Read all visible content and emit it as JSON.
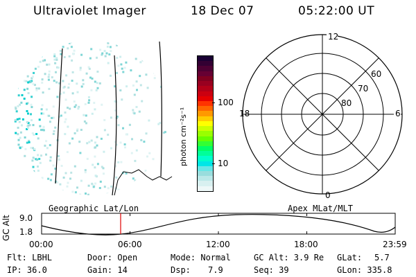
{
  "header": {
    "title": "Ultraviolet Imager",
    "date": "18 Dec 07",
    "time": "05:22:00 UT"
  },
  "colorbar": {
    "unit_label": "photon cm⁻²s⁻¹",
    "ticks": [
      "100",
      "10"
    ],
    "colors": [
      "#1a0033",
      "#330033",
      "#4d0033",
      "#660033",
      "#800020",
      "#990020",
      "#b30018",
      "#cc0010",
      "#e60000",
      "#ff3300",
      "#ff6600",
      "#ff9900",
      "#ffcc00",
      "#ffff00",
      "#ccff00",
      "#99ff00",
      "#66ff00",
      "#33ff33",
      "#00ff66",
      "#00ff99",
      "#00ffcc",
      "#00e6e6",
      "#66e6e6",
      "#99dddd",
      "#bbe8e8",
      "#d8f0f0",
      "#eef8f8"
    ]
  },
  "map_left": {
    "caption": "Geographic Lat/Lon"
  },
  "map_right": {
    "caption": "Apex MLat/MLT",
    "mlt_labels": {
      "top": "12",
      "left": "18",
      "right": "6",
      "bottom": "0"
    },
    "mlat_labels": [
      "60",
      "70",
      "80"
    ]
  },
  "timeline": {
    "axis_label": "GC Alt",
    "y_max": "9.0",
    "y_min": "1.8",
    "time_ticks": [
      "00:00",
      "06:00",
      "12:00",
      "18:00",
      "23:59"
    ],
    "current_time_fraction": 0.2236
  },
  "status": {
    "filter": "Flt: LBHL",
    "door": "Door: Open",
    "mode": "Mode: Normal",
    "gc_alt": "GC Alt: 3.9 Re",
    "glat": "GLat:",
    "glat_val": "5.7",
    "ip": "IP: 36.0",
    "gain": "Gain: 14",
    "dsp": "Dsp:",
    "dsp_val": "7.9",
    "seq": "Seq: 39",
    "glon": "GLon: 335.8"
  }
}
